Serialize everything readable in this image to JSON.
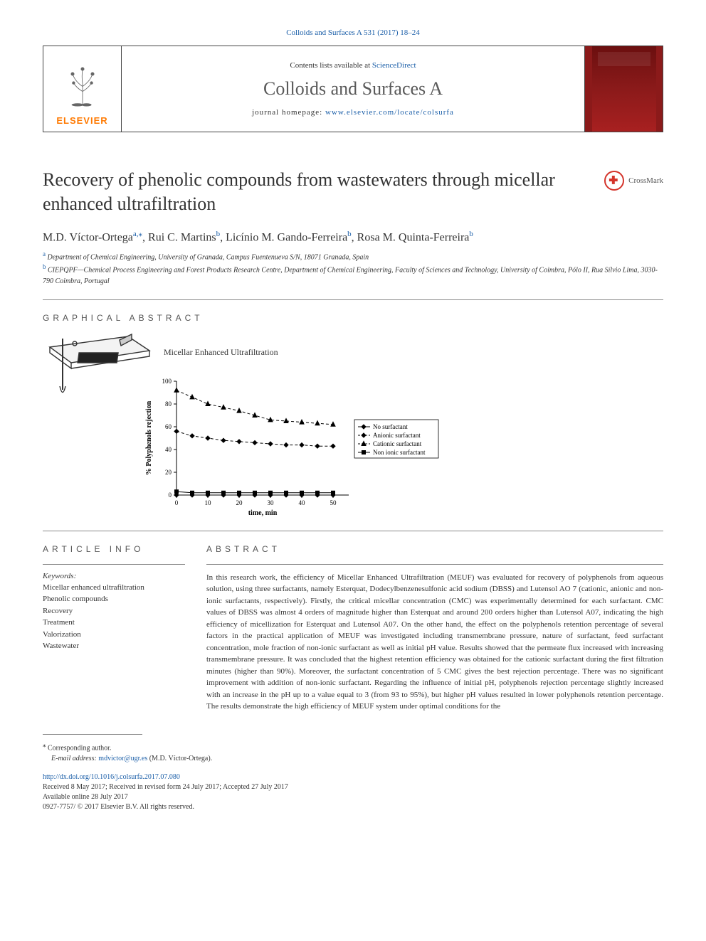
{
  "journal_ref": "Colloids and Surfaces A 531 (2017) 18–24",
  "contents_prefix": "Contents lists available at ",
  "contents_link": "ScienceDirect",
  "journal_name": "Colloids and Surfaces A",
  "homepage_prefix": "journal homepage: ",
  "homepage_url": "www.elsevier.com/locate/colsurfa",
  "publisher_logo_text": "ELSEVIER",
  "crossmark_text": "CrossMark",
  "article_title": "Recovery of phenolic compounds from wastewaters through micellar enhanced ultrafiltration",
  "authors_html_parts": {
    "a1": "M.D. Víctor-Ortega",
    "a1_sup": "a,⁎",
    "a2": ", Rui C. Martins",
    "a2_sup": "b",
    "a3": ", Licínio M. Gando-Ferreira",
    "a3_sup": "b",
    "a4": ", Rosa M. Quinta-Ferreira",
    "a4_sup": "b"
  },
  "affiliations": {
    "a": "Department of Chemical Engineering, University of Granada, Campus Fuentenueva S/N, 18071 Granada, Spain",
    "b": "CIEPQPF—Chemical Process Engineering and Forest Products Research Centre, Department of Chemical Engineering, Faculty of Sciences and Technology, University of Coimbra, Pólo II, Rua Sílvio Lima, 3030-790 Coimbra, Portugal"
  },
  "section_graphical": "GRAPHICAL ABSTRACT",
  "section_info": "ARTICLE INFO",
  "section_abstract": "ABSTRACT",
  "keywords_label": "Keywords:",
  "keywords": [
    "Micellar enhanced ultrafiltration",
    "Phenolic compounds",
    "Recovery",
    "Treatment",
    "Valorization",
    "Wastewater"
  ],
  "abstract_text": "In this research work, the efficiency of Micellar Enhanced Ultrafiltration (MEUF) was evaluated for recovery of polyphenols from aqueous solution, using three surfactants, namely Esterquat, Dodecylbenzenesulfonic acid sodium (DBSS) and Lutensol AO 7 (cationic, anionic and non-ionic surfactants, respectively). Firstly, the critical micellar concentration (CMC) was experimentally determined for each surfactant. CMC values of DBSS was almost 4 orders of magnitude higher than Esterquat and around 200 orders higher than Lutensol A07, indicating the high efficiency of micellization for Esterquat and Lutensol A07. On the other hand, the effect on the polyphenols retention percentage of several factors in the practical application of MEUF was investigated including transmembrane pressure, nature of surfactant, feed surfactant concentration, mole fraction of non-ionic surfactant as well as initial pH value. Results showed that the permeate flux increased with increasing transmembrane pressure. It was concluded that the highest retention efficiency was obtained for the cationic surfactant during the first filtration minutes (higher than 90%). Moreover, the surfactant concentration of 5 CMC gives the best rejection percentage. There was no significant improvement with addition of non-ionic surfactant. Regarding the influence of initial pH, polyphenols rejection percentage slightly increased with an increase in the pH up to a value equal to 3 (from 93 to 95%), but higher pH values resulted in lower polyphenols retention percentage. The results demonstrate the high efficiency of MEUF system under optimal conditions for the",
  "graphical_abstract": {
    "caption": "Micellar Enhanced Ultrafiltration",
    "chart": {
      "type": "line",
      "xlabel": "time, min",
      "ylabel": "% Polyphenols rejection",
      "xlim": [
        0,
        55
      ],
      "ylim": [
        0,
        100
      ],
      "xticks": [
        0,
        10,
        20,
        30,
        40,
        50
      ],
      "yticks": [
        0,
        20,
        40,
        60,
        80,
        100
      ],
      "label_fontsize": 10,
      "tick_fontsize": 9,
      "axis_color": "#000000",
      "background_color": "#ffffff",
      "series": [
        {
          "name": "No surfactant",
          "marker": "diamond",
          "line_style": "solid",
          "color": "#000000",
          "data": [
            [
              0,
              0
            ],
            [
              5,
              0
            ],
            [
              10,
              0
            ],
            [
              15,
              0
            ],
            [
              20,
              0
            ],
            [
              25,
              0
            ],
            [
              30,
              0
            ],
            [
              35,
              0
            ],
            [
              40,
              0
            ],
            [
              45,
              0
            ],
            [
              50,
              0
            ]
          ]
        },
        {
          "name": "Anionic surfactant",
          "marker": "diamond",
          "line_style": "dashed",
          "color": "#000000",
          "data": [
            [
              0,
              56
            ],
            [
              5,
              52
            ],
            [
              10,
              50
            ],
            [
              15,
              48
            ],
            [
              20,
              47
            ],
            [
              25,
              46
            ],
            [
              30,
              45
            ],
            [
              35,
              44
            ],
            [
              40,
              44
            ],
            [
              45,
              43
            ],
            [
              50,
              43
            ]
          ]
        },
        {
          "name": "Cationic surfactant",
          "marker": "triangle",
          "line_style": "dashed",
          "color": "#000000",
          "data": [
            [
              0,
              92
            ],
            [
              5,
              86
            ],
            [
              10,
              80
            ],
            [
              15,
              77
            ],
            [
              20,
              74
            ],
            [
              25,
              70
            ],
            [
              30,
              66
            ],
            [
              35,
              65
            ],
            [
              40,
              64
            ],
            [
              45,
              63
            ],
            [
              50,
              62
            ]
          ]
        },
        {
          "name": "Non ionic surfactant",
          "marker": "square",
          "line_style": "solid",
          "color": "#000000",
          "data": [
            [
              0,
              3
            ],
            [
              5,
              2
            ],
            [
              10,
              2
            ],
            [
              15,
              2
            ],
            [
              20,
              2
            ],
            [
              25,
              2
            ],
            [
              30,
              2
            ],
            [
              35,
              2
            ],
            [
              40,
              2
            ],
            [
              45,
              2
            ],
            [
              50,
              2
            ]
          ]
        }
      ],
      "legend": {
        "position": "right",
        "fontsize": 9,
        "border_color": "#000000"
      }
    }
  },
  "footer": {
    "corr_label": "Corresponding author.",
    "email_label": "E-mail address:",
    "email": "mdvictor@ugr.es",
    "email_author": "(M.D. Víctor-Ortega).",
    "doi": "http://dx.doi.org/10.1016/j.colsurfa.2017.07.080",
    "history": "Received 8 May 2017; Received in revised form 24 July 2017; Accepted 27 July 2017",
    "online": "Available online 28 July 2017",
    "copyright": "0927-7757/ © 2017 Elsevier B.V. All rights reserved."
  }
}
